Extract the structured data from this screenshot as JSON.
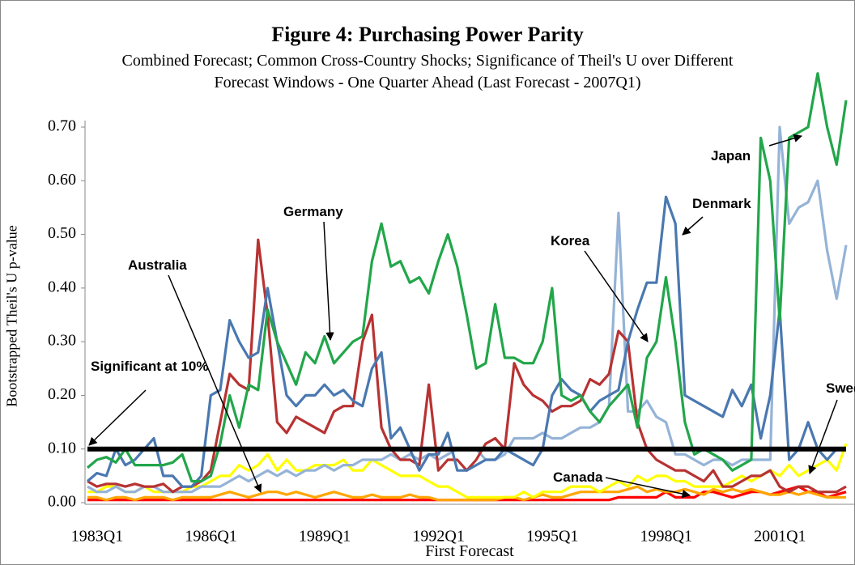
{
  "chart_data": {
    "type": "line",
    "title": "Figure 4: Purchasing Power Parity",
    "subtitle": "Combined Forecast; Common Cross-Country Shocks; Significance of Theil's U over Different Forecast Windows - One Quarter Ahead (Last Forecast - 2007Q1)",
    "x_label": "First Forecast",
    "y_label": "Bootstrapped Theil's U p-value",
    "categories": [
      "1983Q1",
      null,
      null,
      null,
      null,
      null,
      null,
      null,
      null,
      null,
      null,
      null,
      "1986Q1",
      null,
      null,
      null,
      null,
      null,
      null,
      null,
      null,
      null,
      null,
      null,
      "1989Q1",
      null,
      null,
      null,
      null,
      null,
      null,
      null,
      null,
      null,
      null,
      null,
      "1992Q1",
      null,
      null,
      null,
      null,
      null,
      null,
      null,
      null,
      null,
      null,
      null,
      "1995Q1",
      null,
      null,
      null,
      null,
      null,
      null,
      null,
      null,
      null,
      null,
      null,
      "1998Q1",
      null,
      null,
      null,
      null,
      null,
      null,
      null,
      null,
      null,
      null,
      null,
      "2001Q1",
      null,
      null,
      null,
      null,
      null,
      null,
      null,
      null
    ],
    "ylim": [
      0,
      0.7
    ],
    "yticks": [
      {
        "value": 0,
        "label": "0.00"
      },
      {
        "value": 0.1,
        "label": "0.10"
      },
      {
        "value": 0.2,
        "label": "0.20"
      },
      {
        "value": 0.3,
        "label": "0.30"
      },
      {
        "value": 0.4,
        "label": "0.40"
      },
      {
        "value": 0.5,
        "label": "0.50"
      },
      {
        "value": 0.6,
        "label": "0.60"
      },
      {
        "value": 0.7,
        "label": "0.70"
      }
    ],
    "grid": false,
    "reference_line": {
      "value": 0.1,
      "label": "Significant at 10%",
      "color": "#000000"
    },
    "series": [
      {
        "name": "Australia",
        "color": "#ff0000",
        "values": [
          0.005,
          0.005,
          0.005,
          0.005,
          0.005,
          0.005,
          0.005,
          0.005,
          0.005,
          0.005,
          0.005,
          0.005,
          0.005,
          0.005,
          0.005,
          0.005,
          0.005,
          0.005,
          0.005,
          0.005,
          0.005,
          0.005,
          0.005,
          0.005,
          0.005,
          0.005,
          0.005,
          0.005,
          0.005,
          0.005,
          0.005,
          0.005,
          0.005,
          0.005,
          0.005,
          0.005,
          0.005,
          0.005,
          0.005,
          0.005,
          0.005,
          0.005,
          0.005,
          0.005,
          0.005,
          0.005,
          0.005,
          0.005,
          0.005,
          0.005,
          0.005,
          0.005,
          0.005,
          0.005,
          0.005,
          0.005,
          0.01,
          0.01,
          0.01,
          0.01,
          0.01,
          0.02,
          0.01,
          0.01,
          0.01,
          0.02,
          0.02,
          0.015,
          0.01,
          0.015,
          0.02,
          0.02,
          0.015,
          0.02,
          0.025,
          0.03,
          0.02,
          0.02,
          0.01,
          0.015,
          0.02
        ]
      },
      {
        "name": "Canada",
        "color": "#ffa500",
        "values": [
          0.01,
          0.01,
          0.005,
          0.01,
          0.01,
          0.005,
          0.01,
          0.01,
          0.01,
          0.005,
          0.01,
          0.01,
          0.01,
          0.01,
          0.015,
          0.02,
          0.015,
          0.01,
          0.015,
          0.02,
          0.02,
          0.015,
          0.02,
          0.015,
          0.01,
          0.015,
          0.02,
          0.015,
          0.01,
          0.01,
          0.015,
          0.01,
          0.01,
          0.01,
          0.015,
          0.01,
          0.01,
          0.005,
          0.005,
          0.005,
          0.005,
          0.005,
          0.005,
          0.005,
          0.01,
          0.01,
          0.005,
          0.01,
          0.015,
          0.01,
          0.01,
          0.015,
          0.02,
          0.02,
          0.02,
          0.02,
          0.02,
          0.025,
          0.03,
          0.02,
          0.025,
          0.02,
          0.02,
          0.025,
          0.02,
          0.015,
          0.025,
          0.02,
          0.025,
          0.02,
          0.025,
          0.02,
          0.015,
          0.015,
          0.02,
          0.015,
          0.02,
          0.015,
          0.01,
          0.01,
          0.01
        ]
      },
      {
        "name": "Sweden",
        "color": "#ffff00",
        "values": [
          0.02,
          0.02,
          0.03,
          0.03,
          0.02,
          0.02,
          0.03,
          0.02,
          0.02,
          0.02,
          0.02,
          0.03,
          0.03,
          0.04,
          0.05,
          0.05,
          0.07,
          0.06,
          0.07,
          0.09,
          0.06,
          0.08,
          0.06,
          0.06,
          0.07,
          0.07,
          0.07,
          0.08,
          0.06,
          0.06,
          0.08,
          0.07,
          0.06,
          0.05,
          0.05,
          0.05,
          0.04,
          0.03,
          0.03,
          0.02,
          0.01,
          0.01,
          0.01,
          0.01,
          0.01,
          0.01,
          0.02,
          0.01,
          0.02,
          0.02,
          0.02,
          0.03,
          0.03,
          0.03,
          0.02,
          0.03,
          0.04,
          0.03,
          0.05,
          0.04,
          0.05,
          0.05,
          0.04,
          0.04,
          0.03,
          0.03,
          0.03,
          0.03,
          0.04,
          0.05,
          0.04,
          0.05,
          0.06,
          0.05,
          0.07,
          0.05,
          0.06,
          0.07,
          0.08,
          0.06,
          0.11
        ]
      },
      {
        "name": "Denmark",
        "color": "#95b3d7",
        "values": [
          0.03,
          0.02,
          0.02,
          0.03,
          0.02,
          0.02,
          0.03,
          0.03,
          0.02,
          0.02,
          0.02,
          0.02,
          0.03,
          0.03,
          0.03,
          0.04,
          0.05,
          0.04,
          0.05,
          0.06,
          0.05,
          0.06,
          0.05,
          0.06,
          0.06,
          0.07,
          0.06,
          0.07,
          0.07,
          0.08,
          0.08,
          0.08,
          0.09,
          0.08,
          0.09,
          0.08,
          0.09,
          0.08,
          0.09,
          0.1,
          0.1,
          0.1,
          0.08,
          0.08,
          0.09,
          0.12,
          0.12,
          0.12,
          0.13,
          0.12,
          0.12,
          0.13,
          0.14,
          0.14,
          0.15,
          0.18,
          0.54,
          0.17,
          0.17,
          0.19,
          0.16,
          0.15,
          0.09,
          0.09,
          0.08,
          0.07,
          0.08,
          0.08,
          0.07,
          0.08,
          0.08,
          0.08,
          0.08,
          0.7,
          0.52,
          0.55,
          0.56,
          0.6,
          0.47,
          0.38,
          0.48
        ]
      },
      {
        "name": "Germany",
        "color": "#b83232",
        "values": [
          0.04,
          0.03,
          0.035,
          0.035,
          0.03,
          0.035,
          0.03,
          0.03,
          0.035,
          0.02,
          0.03,
          0.03,
          0.04,
          0.06,
          0.15,
          0.24,
          0.22,
          0.21,
          0.49,
          0.35,
          0.15,
          0.13,
          0.16,
          0.15,
          0.14,
          0.13,
          0.17,
          0.18,
          0.18,
          0.3,
          0.35,
          0.14,
          0.1,
          0.08,
          0.08,
          0.07,
          0.22,
          0.06,
          0.08,
          0.08,
          0.06,
          0.08,
          0.11,
          0.12,
          0.1,
          0.26,
          0.22,
          0.2,
          0.19,
          0.17,
          0.18,
          0.18,
          0.19,
          0.23,
          0.22,
          0.24,
          0.32,
          0.3,
          0.15,
          0.1,
          0.08,
          0.07,
          0.06,
          0.06,
          0.05,
          0.04,
          0.06,
          0.03,
          0.03,
          0.04,
          0.05,
          0.05,
          0.06,
          0.03,
          0.02,
          0.03,
          0.03,
          0.02,
          0.02,
          0.02,
          0.03
        ]
      },
      {
        "name": "Korea",
        "color": "#4a78b0",
        "values": [
          0.04,
          0.055,
          0.05,
          0.1,
          0.07,
          0.08,
          0.1,
          0.12,
          0.05,
          0.05,
          0.03,
          0.03,
          0.05,
          0.2,
          0.21,
          0.34,
          0.3,
          0.27,
          0.28,
          0.4,
          0.3,
          0.2,
          0.18,
          0.2,
          0.2,
          0.22,
          0.2,
          0.21,
          0.19,
          0.18,
          0.25,
          0.28,
          0.12,
          0.14,
          0.1,
          0.06,
          0.09,
          0.09,
          0.13,
          0.06,
          0.06,
          0.07,
          0.08,
          0.08,
          0.1,
          0.09,
          0.08,
          0.07,
          0.1,
          0.2,
          0.23,
          0.21,
          0.2,
          0.17,
          0.19,
          0.2,
          0.21,
          0.3,
          0.36,
          0.41,
          0.41,
          0.57,
          0.52,
          0.2,
          0.19,
          0.18,
          0.17,
          0.16,
          0.21,
          0.18,
          0.22,
          0.12,
          0.2,
          0.36,
          0.08,
          0.1,
          0.15,
          0.1,
          0.08,
          0.1,
          0.1
        ]
      },
      {
        "name": "Japan",
        "color": "#22a64a",
        "values": [
          0.065,
          0.08,
          0.085,
          0.075,
          0.1,
          0.07,
          0.07,
          0.07,
          0.07,
          0.075,
          0.09,
          0.04,
          0.04,
          0.05,
          0.11,
          0.2,
          0.14,
          0.22,
          0.21,
          0.36,
          0.3,
          0.26,
          0.22,
          0.28,
          0.26,
          0.31,
          0.26,
          0.28,
          0.3,
          0.31,
          0.45,
          0.52,
          0.44,
          0.45,
          0.41,
          0.42,
          0.39,
          0.45,
          0.5,
          0.44,
          0.35,
          0.25,
          0.26,
          0.37,
          0.27,
          0.27,
          0.26,
          0.26,
          0.3,
          0.4,
          0.2,
          0.19,
          0.2,
          0.17,
          0.15,
          0.18,
          0.2,
          0.22,
          0.14,
          0.27,
          0.3,
          0.42,
          0.3,
          0.15,
          0.09,
          0.1,
          0.09,
          0.08,
          0.06,
          0.07,
          0.08,
          0.68,
          0.6,
          0.34,
          0.68,
          0.69,
          0.7,
          0.8,
          0.7,
          0.63,
          0.75
        ]
      }
    ]
  }
}
